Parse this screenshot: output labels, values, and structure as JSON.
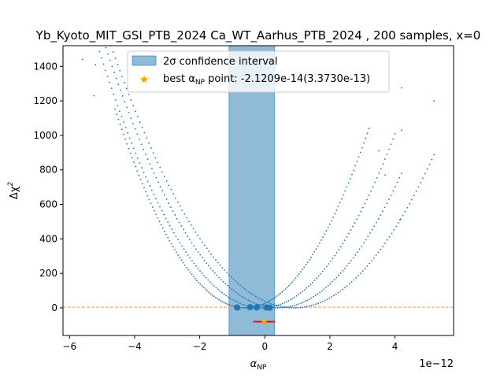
{
  "chart_data": {
    "type": "scatter",
    "title": "Yb_Kyoto_MIT_GSI_PTB_2024 Ca_WT_Aarhus_PTB_2024 , 200 samples, x=0",
    "xlabel": "α",
    "xlabel_sub": "NP",
    "ylabel": "Δχ",
    "ylabel_sup": "2",
    "x_offset_text": "1e−12",
    "x_unit_scale": 1e-12,
    "xlim": [
      -6.2,
      5.8
    ],
    "ylim": [
      -160,
      1520
    ],
    "x_ticks": [
      -6,
      -4,
      -2,
      0,
      2,
      4
    ],
    "x_tick_labels": [
      "−6",
      "−4",
      "−2",
      "0",
      "2",
      "4"
    ],
    "y_ticks": [
      0,
      200,
      400,
      600,
      800,
      1000,
      1200,
      1400
    ],
    "y_tick_labels": [
      "0",
      "200",
      "400",
      "600",
      "800",
      "1000",
      "1200",
      "1400"
    ],
    "grid": false,
    "legend_position": "top-center",
    "confidence_interval": {
      "x": [
        -1.1,
        0.3
      ],
      "color": "#1f77b4",
      "alpha": 0.5
    },
    "reference_line": {
      "y": 4,
      "style": "dashed",
      "color": "#ffa500"
    },
    "best_point": {
      "x": -0.021209,
      "y": -80,
      "err": 0.3373,
      "color": "#ffa500"
    },
    "best_point_errorbar_color": "#ff0000",
    "minima_markers": [
      {
        "x": -0.85,
        "y": 2
      },
      {
        "x": -0.45,
        "y": 4
      },
      {
        "x": -0.25,
        "y": 3
      },
      {
        "x": 0.05,
        "y": 2
      },
      {
        "x": 0.15,
        "y": 1
      }
    ],
    "series": [
      {
        "vertex": -0.6,
        "a": 72,
        "x_from": -4.6,
        "x_to": 3.2,
        "n": 150
      },
      {
        "vertex": -0.1,
        "a": 60,
        "x_from": -5.2,
        "x_to": 4.0,
        "n": 150
      },
      {
        "vertex": 0.4,
        "a": 54,
        "x_from": -5.4,
        "x_to": 4.2,
        "n": 150
      },
      {
        "vertex": 0.9,
        "a": 48,
        "x_from": -5.0,
        "x_to": 5.2,
        "n": 150
      }
    ],
    "outlier_points": [
      {
        "x": -5.6,
        "y": 1440
      },
      {
        "x": -5.2,
        "y": 1410
      },
      {
        "x": -5.25,
        "y": 1230
      },
      {
        "x": 5.2,
        "y": 1200
      },
      {
        "x": 4.2,
        "y": 1275
      },
      {
        "x": 4.2,
        "y": 1030
      },
      {
        "x": 4.15,
        "y": 510
      },
      {
        "x": 3.5,
        "y": 910
      },
      {
        "x": 3.7,
        "y": 770
      }
    ],
    "point_color": "#1f77b4",
    "legend": [
      {
        "label": "2σ confidence interval",
        "marker": "patch"
      },
      {
        "label": "best α",
        "label_sub": "NP",
        "label_tail": " point: -2.1209e-14(3.3730e-13)",
        "marker": "star"
      }
    ]
  }
}
